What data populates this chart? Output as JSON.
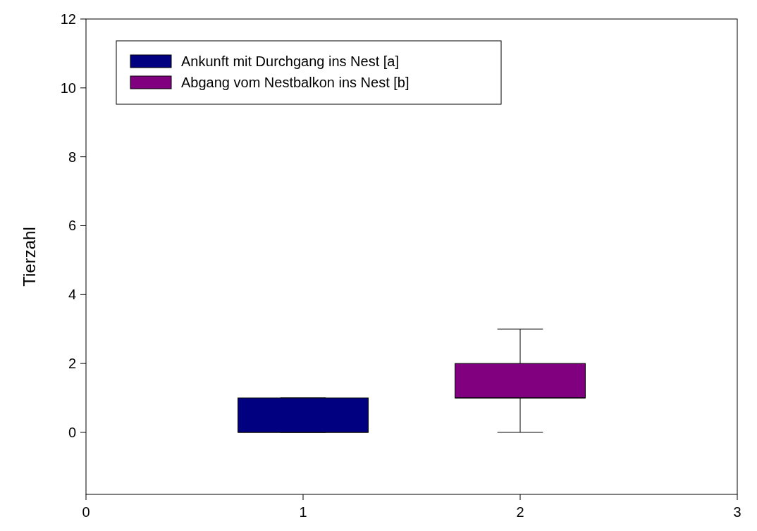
{
  "chart_data": {
    "type": "box",
    "ylabel": "Tierzahl",
    "categories": [
      "0",
      "1",
      "2",
      "3"
    ],
    "ylim": [
      -1.8,
      12
    ],
    "yticks": [
      0,
      2,
      4,
      6,
      8,
      10,
      12
    ],
    "legend": "top left",
    "grid": false,
    "series": [
      {
        "name": "Ankunft mit Durchgang ins Nest [a]",
        "color": "#000080",
        "boxes": [
          null,
          {
            "low": 0,
            "q1": 0,
            "median": 0,
            "q3": 1,
            "high": 1
          },
          null,
          null
        ]
      },
      {
        "name": "Abgang vom Nestbalkon ins Nest [b]",
        "color": "#800080",
        "boxes": [
          null,
          null,
          {
            "low": 0,
            "q1": 1,
            "median": 1,
            "q3": 2,
            "high": 3
          },
          null
        ]
      }
    ]
  }
}
